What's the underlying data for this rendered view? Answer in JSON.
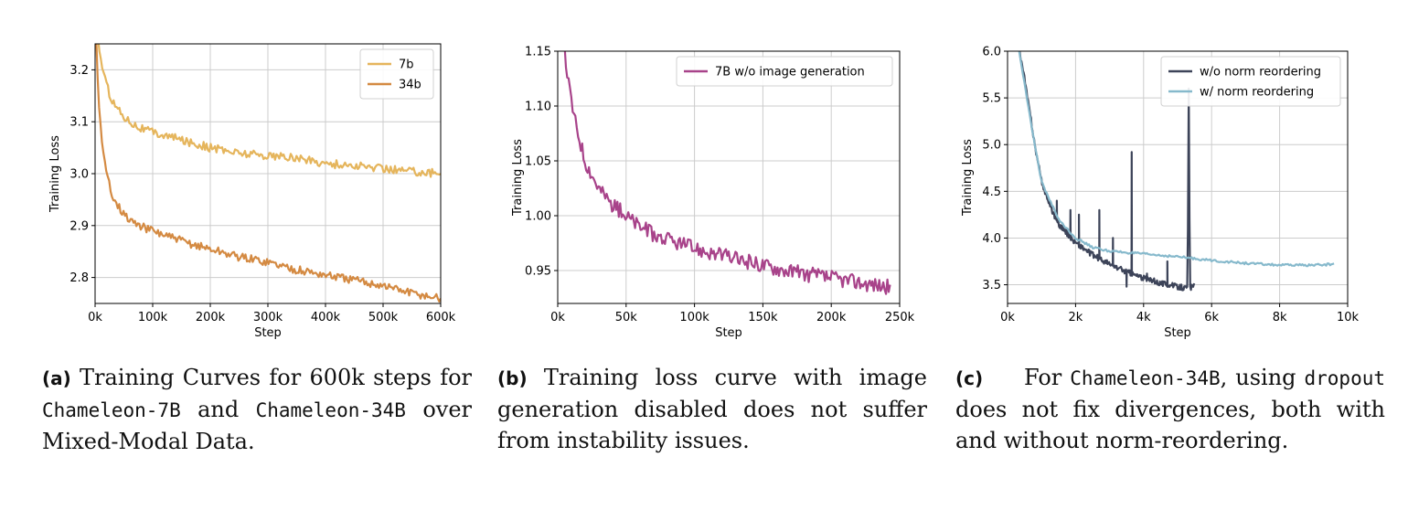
{
  "chart_data": [
    {
      "type": "line",
      "panel_tag": "(a)",
      "caption": {
        "t1": " Training Curves for 600k steps for ",
        "m1": "Chameleon-7B",
        "t2": " and ",
        "m2": "Chameleon-34B",
        "t3": " over Mixed-Modal Data."
      },
      "xlabel": "Step",
      "ylabel": "Training Loss",
      "xlim": [
        0,
        600000
      ],
      "ylim": [
        2.75,
        3.25
      ],
      "xticks": [
        0,
        100000,
        200000,
        300000,
        400000,
        500000,
        600000
      ],
      "xtick_labels": [
        "0k",
        "100k",
        "200k",
        "300k",
        "400k",
        "500k",
        "600k"
      ],
      "yticks": [
        2.8,
        2.9,
        3.0,
        3.1,
        3.2
      ],
      "ytick_labels": [
        "2.8",
        "2.9",
        "3.0",
        "3.1",
        "3.2"
      ],
      "grid": true,
      "legend_position": "top-right",
      "series": [
        {
          "name": "7b",
          "color": "#e5b55c",
          "noise": 0.008,
          "x": [
            5000,
            10000,
            20000,
            30000,
            50000,
            75000,
            100000,
            150000,
            200000,
            250000,
            300000,
            350000,
            400000,
            450000,
            500000,
            550000,
            600000
          ],
          "y": [
            3.26,
            3.22,
            3.17,
            3.14,
            3.11,
            3.09,
            3.08,
            3.065,
            3.05,
            3.04,
            3.035,
            3.03,
            3.02,
            3.015,
            3.01,
            3.005,
            3.0
          ]
        },
        {
          "name": "34b",
          "color": "#d48a42",
          "noise": 0.008,
          "x": [
            2000,
            5000,
            10000,
            15000,
            20000,
            30000,
            50000,
            75000,
            100000,
            150000,
            200000,
            250000,
            300000,
            350000,
            400000,
            450000,
            500000,
            550000,
            600000
          ],
          "y": [
            3.26,
            3.17,
            3.08,
            3.03,
            3.0,
            2.96,
            2.92,
            2.9,
            2.89,
            2.87,
            2.855,
            2.84,
            2.83,
            2.815,
            2.805,
            2.795,
            2.785,
            2.77,
            2.76
          ]
        }
      ]
    },
    {
      "type": "line",
      "panel_tag": "(b)",
      "caption": {
        "t1": " Training loss curve with image generation disabled does not suffer from instability issues."
      },
      "xlabel": "Step",
      "ylabel": "Training Loss",
      "xlim": [
        0,
        250000
      ],
      "ylim": [
        0.92,
        1.15
      ],
      "xticks": [
        0,
        50000,
        100000,
        150000,
        200000,
        250000
      ],
      "xtick_labels": [
        "0k",
        "50k",
        "100k",
        "150k",
        "200k",
        "250k"
      ],
      "yticks": [
        0.95,
        1.0,
        1.05,
        1.1,
        1.15
      ],
      "ytick_labels": [
        "0.95",
        "1.00",
        "1.05",
        "1.10",
        "1.15"
      ],
      "grid": true,
      "legend_position": "top-right",
      "series": [
        {
          "name": "7B w/o image generation",
          "color": "#a8438a",
          "noise": 0.007,
          "x": [
            5000,
            8000,
            12000,
            20000,
            30000,
            40000,
            50000,
            60000,
            75000,
            100000,
            125000,
            150000,
            175000,
            200000,
            225000,
            243000
          ],
          "y": [
            1.15,
            1.12,
            1.09,
            1.05,
            1.025,
            1.01,
            1.0,
            0.99,
            0.98,
            0.97,
            0.962,
            0.955,
            0.948,
            0.943,
            0.938,
            0.935
          ]
        }
      ]
    },
    {
      "type": "line",
      "panel_tag": "(c)",
      "caption": {
        "t1": "For ",
        "m1": "Chameleon-34B",
        "t2": ", using ",
        "m2": "dropout",
        "t3": " does not fix divergences, both with and without norm-reordering."
      },
      "xlabel": "Step",
      "ylabel": "Training Loss",
      "xlim": [
        0,
        10000
      ],
      "ylim": [
        3.3,
        6.0
      ],
      "xticks": [
        0,
        2000,
        4000,
        6000,
        8000,
        10000
      ],
      "xtick_labels": [
        "0k",
        "2k",
        "4k",
        "6k",
        "8k",
        "10k"
      ],
      "yticks": [
        3.5,
        4.0,
        4.5,
        5.0,
        5.5,
        6.0
      ],
      "ytick_labels": [
        "3.5",
        "4.0",
        "4.5",
        "5.0",
        "5.5",
        "6.0"
      ],
      "grid": true,
      "legend_position": "top-right",
      "series": [
        {
          "name": "w/o norm reordering",
          "color": "#3d4459",
          "noise": 0.03,
          "x": [
            300,
            500,
            800,
            1000,
            1300,
            1500,
            2000,
            2500,
            3000,
            3500,
            4000,
            4500,
            5000,
            5300,
            5320,
            5360,
            5500
          ],
          "y": [
            6.1,
            5.7,
            5.0,
            4.6,
            4.3,
            4.15,
            3.95,
            3.82,
            3.72,
            3.64,
            3.57,
            3.52,
            3.48,
            3.46,
            6.0,
            3.47,
            3.48
          ],
          "spikes": [
            [
              1450,
              4.4
            ],
            [
              1850,
              4.3
            ],
            [
              2100,
              4.25
            ],
            [
              2700,
              4.3
            ],
            [
              3100,
              4.0
            ],
            [
              3500,
              3.48
            ],
            [
              3650,
              4.92
            ],
            [
              4100,
              3.62
            ],
            [
              4700,
              3.75
            ]
          ]
        },
        {
          "name": "w/ norm reordering",
          "color": "#86b9cc",
          "noise": 0.012,
          "x": [
            300,
            500,
            800,
            1000,
            1500,
            2000,
            2500,
            3000,
            4000,
            5000,
            6000,
            7000,
            8000,
            9000,
            9600
          ],
          "y": [
            6.1,
            5.65,
            5.0,
            4.6,
            4.2,
            4.0,
            3.9,
            3.86,
            3.83,
            3.8,
            3.76,
            3.73,
            3.71,
            3.71,
            3.72
          ]
        }
      ]
    }
  ]
}
